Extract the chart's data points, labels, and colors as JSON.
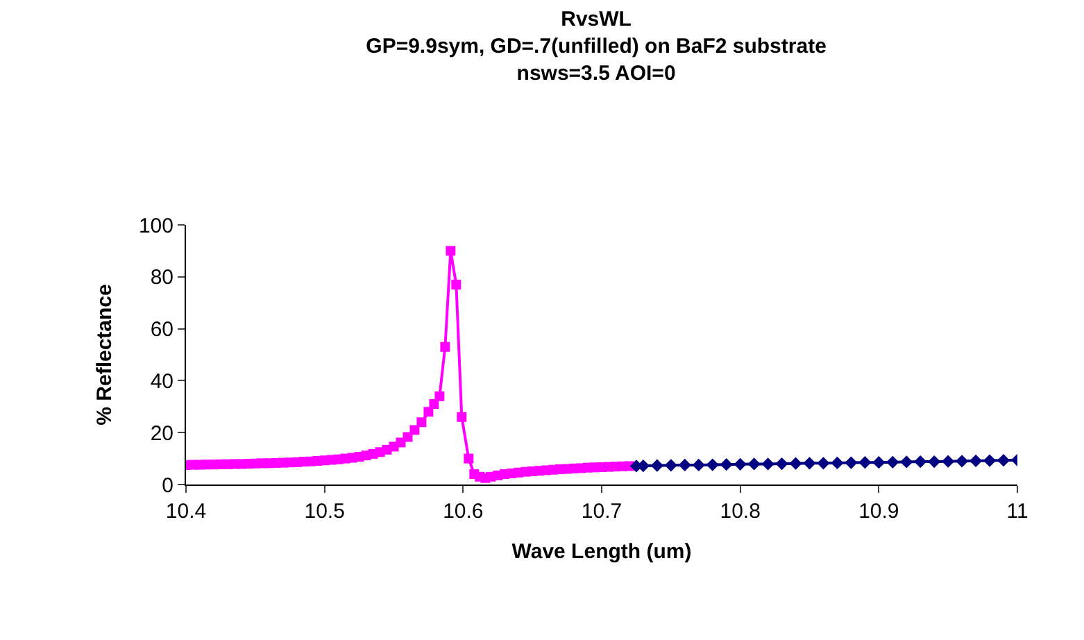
{
  "chart_data": {
    "type": "line",
    "title": "RvsWL\nGP=9.9sym, GD=.7(unfilled) on BaF2 substrate\nnsws=3.5 AOI=0",
    "xlabel": "Wave Length (um)",
    "ylabel": "% Reflectance",
    "xlim": [
      10.4,
      11
    ],
    "xticks": [
      10.4,
      10.5,
      10.6,
      10.7,
      10.8,
      10.9,
      11
    ],
    "ylim": [
      0,
      100
    ],
    "yticks": [
      0,
      20,
      40,
      60,
      80,
      100
    ],
    "series": [
      {
        "color": "#ff00ff",
        "marker": "square",
        "x": [
          10.4,
          10.405,
          10.41,
          10.415,
          10.42,
          10.425,
          10.43,
          10.435,
          10.44,
          10.445,
          10.45,
          10.455,
          10.46,
          10.465,
          10.47,
          10.475,
          10.48,
          10.485,
          10.49,
          10.495,
          10.5,
          10.505,
          10.51,
          10.515,
          10.52,
          10.525,
          10.53,
          10.535,
          10.54,
          10.545,
          10.55,
          10.555,
          10.56,
          10.565,
          10.57,
          10.575,
          10.579,
          10.583,
          10.587,
          10.591,
          10.595,
          10.599,
          10.604,
          10.608,
          10.612,
          10.616,
          10.62,
          10.625,
          10.63,
          10.635,
          10.64,
          10.645,
          10.65,
          10.655,
          10.66,
          10.665,
          10.67,
          10.675,
          10.68,
          10.685,
          10.69,
          10.695,
          10.7,
          10.705,
          10.71,
          10.715,
          10.72
        ],
        "values": [
          7.5,
          7.6,
          7.6,
          7.7,
          7.7,
          7.8,
          7.8,
          7.9,
          7.9,
          8.0,
          8.1,
          8.2,
          8.2,
          8.3,
          8.4,
          8.5,
          8.6,
          8.8,
          8.9,
          9.1,
          9.3,
          9.5,
          9.7,
          10.0,
          10.3,
          10.7,
          11.2,
          11.8,
          12.5,
          13.4,
          14.6,
          16.2,
          18.3,
          21,
          24,
          28,
          31,
          34,
          53,
          90,
          77,
          26,
          10,
          4,
          3,
          2.5,
          3,
          3.5,
          4,
          4.3,
          4.6,
          4.9,
          5.1,
          5.3,
          5.5,
          5.7,
          5.9,
          6,
          6.2,
          6.3,
          6.5,
          6.6,
          6.7,
          6.8,
          6.9,
          7,
          7.1
        ]
      },
      {
        "color": "#000080",
        "marker": "diamond",
        "x": [
          10.725,
          10.73,
          10.74,
          10.75,
          10.76,
          10.77,
          10.78,
          10.79,
          10.8,
          10.81,
          10.82,
          10.83,
          10.84,
          10.85,
          10.86,
          10.87,
          10.88,
          10.89,
          10.9,
          10.91,
          10.92,
          10.93,
          10.94,
          10.95,
          10.96,
          10.97,
          10.98,
          10.99,
          11.0
        ],
        "values": [
          7.1,
          7.2,
          7.3,
          7.4,
          7.5,
          7.5,
          7.6,
          7.7,
          7.8,
          7.9,
          7.9,
          8.0,
          8.1,
          8.2,
          8.2,
          8.3,
          8.4,
          8.5,
          8.5,
          8.6,
          8.7,
          8.8,
          8.8,
          8.9,
          9.0,
          9.1,
          9.2,
          9.3,
          9.4
        ]
      }
    ]
  }
}
